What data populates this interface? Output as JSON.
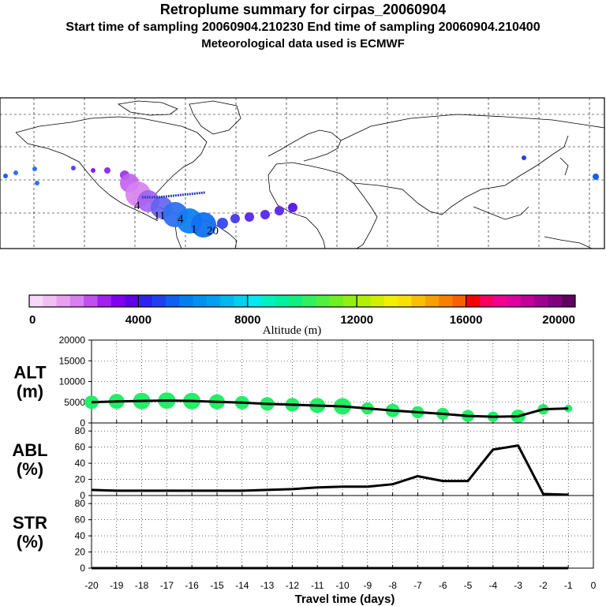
{
  "header": {
    "title": "Retroplume summary for cirpas_20060904",
    "sampling": "Start time of sampling 20060904.210230     End time of sampling 20060904.210400",
    "met": "Meteorological data used is ECMWF"
  },
  "colors": {
    "panel_marker": "#22ee66",
    "colorbar": [
      "#f8d8f8",
      "#f0c0f0",
      "#e8a0f0",
      "#d880f0",
      "#c050f0",
      "#a020f0",
      "#8000f0",
      "#6000e8",
      "#3020f0",
      "#2040f0",
      "#1060f0",
      "#0080f0",
      "#0090f0",
      "#00a0f0",
      "#00b8f0",
      "#00d0f0",
      "#00e8f0",
      "#00f0c0",
      "#00f0a0",
      "#10f080",
      "#30f060",
      "#50f040",
      "#70f020",
      "#90f010",
      "#b0f000",
      "#d0f000",
      "#f0f000",
      "#f8e000",
      "#f8c000",
      "#f8a000",
      "#f88000",
      "#f86000",
      "#f80000",
      "#f80060",
      "#f00090",
      "#e000a0",
      "#c00098",
      "#a00090",
      "#800080",
      "#600060"
    ]
  },
  "map_labels": [
    "4",
    "11",
    "4",
    "1",
    "20"
  ],
  "chart_data": [
    {
      "type": "heatmap",
      "name": "colorbar",
      "xlabel": "Altitude (m)",
      "tick_labels": [
        "0",
        "4000",
        "8000",
        "12000",
        "16000",
        "20000"
      ],
      "range": [
        0,
        20000
      ]
    },
    {
      "type": "line",
      "name": "ALT",
      "ylabel": "ALT\n(m)",
      "ylabel_lines": [
        "ALT",
        "(m)"
      ],
      "ylim": [
        0,
        20000
      ],
      "yticks": [
        0,
        5000,
        10000,
        15000,
        20000
      ],
      "x": [
        -20,
        -19,
        -18,
        -17,
        -16,
        -15,
        -14,
        -13,
        -12,
        -11,
        -10,
        -9,
        -8,
        -7,
        -6,
        -5,
        -4,
        -3,
        -2,
        -1
      ],
      "values": [
        5000,
        5200,
        5300,
        5400,
        5300,
        5100,
        4900,
        4600,
        4400,
        4200,
        4000,
        3500,
        3000,
        2600,
        2200,
        1700,
        1500,
        1600,
        3300,
        3500
      ],
      "marker_sizes": [
        9,
        10,
        11,
        11,
        11,
        10,
        9,
        9,
        9,
        10,
        11,
        8,
        9,
        8,
        8,
        8,
        7,
        9,
        7,
        5
      ]
    },
    {
      "type": "line",
      "name": "ABL",
      "ylabel": "ABL\n(%)",
      "ylabel_lines": [
        "ABL",
        "(%)"
      ],
      "ylim": [
        0,
        90
      ],
      "yticks": [
        0,
        20,
        40,
        60,
        80
      ],
      "x": [
        -20,
        -19,
        -18,
        -17,
        -16,
        -15,
        -14,
        -13,
        -12,
        -11,
        -10,
        -9,
        -8,
        -7,
        -6,
        -5,
        -4,
        -3,
        -2,
        -1
      ],
      "values": [
        7,
        6,
        6,
        6,
        6,
        6,
        6,
        7,
        8,
        10,
        11,
        11,
        14,
        24,
        18,
        18,
        57,
        62,
        2,
        1
      ]
    },
    {
      "type": "line",
      "name": "STR",
      "ylabel": "STR\n(%)",
      "ylabel_lines": [
        "STR",
        "(%)"
      ],
      "ylim": [
        0,
        90
      ],
      "yticks": [
        0,
        20,
        40,
        60,
        80
      ],
      "x": [
        -20,
        -19,
        -18,
        -17,
        -16,
        -15,
        -14,
        -13,
        -12,
        -11,
        -10,
        -9,
        -8,
        -7,
        -6,
        -5,
        -4,
        -3,
        -2,
        -1
      ],
      "values": [
        0,
        0,
        0,
        0,
        0,
        0,
        0,
        0,
        0,
        0,
        0,
        0,
        0,
        0,
        0,
        0,
        0,
        0,
        0,
        0
      ]
    }
  ],
  "x_axis": {
    "label": "Travel time (days)",
    "tick_labels": [
      "-20",
      "-19",
      "-18",
      "-17",
      "-16",
      "-15",
      "-14",
      "-13",
      "-12",
      "-11",
      "-10",
      "-9",
      "-8",
      "-7",
      "-6",
      "-5",
      "-4",
      "-3",
      "-2",
      "-1",
      "0"
    ]
  }
}
